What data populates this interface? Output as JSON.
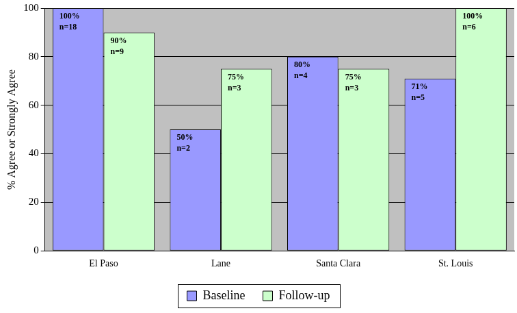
{
  "chart_data": {
    "type": "bar",
    "y_label": "% Agree or Strongly Agree",
    "categories": [
      "El Paso",
      "Lane",
      "Santa Clara",
      "St. Louis"
    ],
    "series": [
      {
        "name": "Baseline",
        "color": "#9999ff",
        "values": [
          100,
          50,
          80,
          71
        ],
        "value_labels": [
          [
            "100%",
            "n=18"
          ],
          [
            "50%",
            "n=2"
          ],
          [
            "80%",
            "n=4"
          ],
          [
            "71%",
            "n=5"
          ]
        ]
      },
      {
        "name": "Follow-up",
        "color": "#ccffcc",
        "values": [
          90,
          75,
          75,
          100
        ],
        "value_labels": [
          [
            "90%",
            "n=9"
          ],
          [
            "75%",
            "n=3"
          ],
          [
            "75%",
            "n=3"
          ],
          [
            "100%",
            "n=6"
          ]
        ]
      }
    ],
    "ylim": [
      0,
      100
    ],
    "yticks": [
      0,
      20,
      40,
      60,
      80,
      100
    ],
    "grid": true,
    "legend": "bottom",
    "data_labels": true
  }
}
